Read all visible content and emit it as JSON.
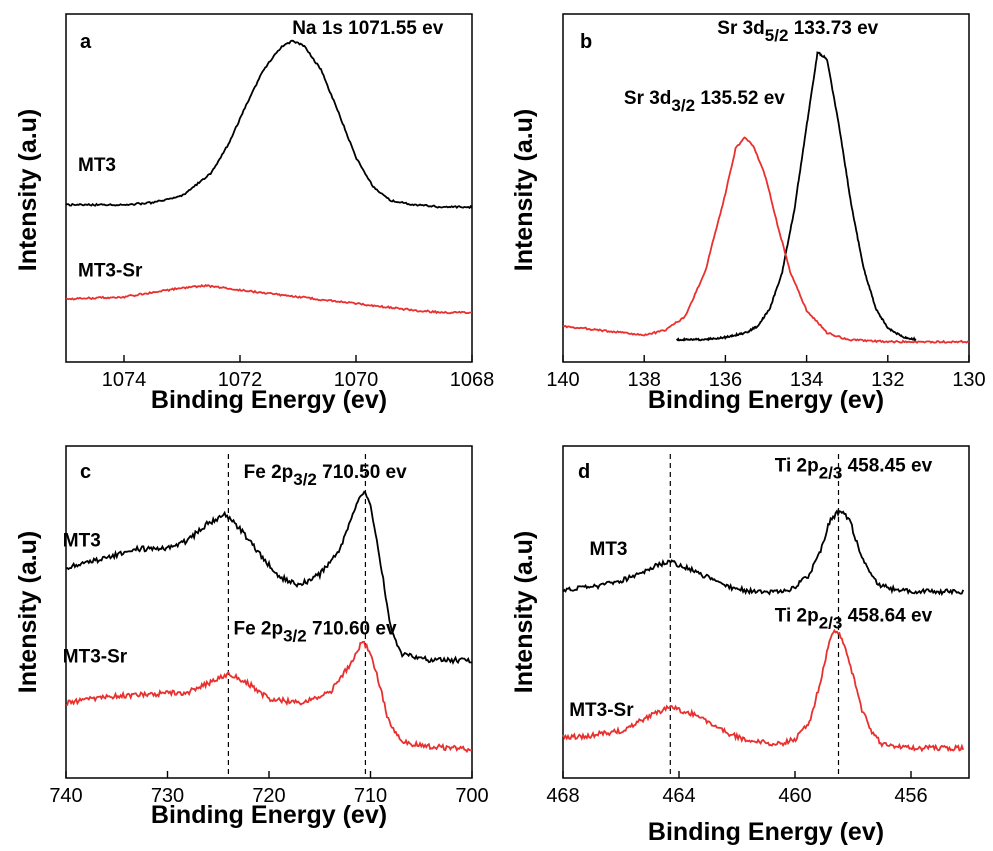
{
  "chart_data": [
    {
      "type": "line",
      "panel_label": "a",
      "xlabel": "Binding Energy (ev)",
      "ylabel": "Intensity (a.u)",
      "xlim": [
        1075,
        1068
      ],
      "xticks": [
        1074,
        1072,
        1070,
        1068
      ],
      "ylim": [
        -0.1,
        1.45
      ],
      "annotations": [
        {
          "text": "Na 1s 1071.55 ev",
          "x": 1071.1,
          "y": 1.36
        }
      ],
      "series": [
        {
          "name": "MT3",
          "color": "#000000",
          "label_at": [
            1075.0,
            0.75
          ],
          "x": [
            1075.0,
            1074.0,
            1073.5,
            1073.0,
            1072.5,
            1072.2,
            1071.9,
            1071.6,
            1071.3,
            1071.1,
            1070.9,
            1070.6,
            1070.3,
            1070.0,
            1069.7,
            1069.4,
            1069.0,
            1068.5,
            1068.0
          ],
          "y": [
            0.6,
            0.6,
            0.61,
            0.64,
            0.74,
            0.87,
            1.04,
            1.2,
            1.3,
            1.33,
            1.31,
            1.2,
            1.01,
            0.81,
            0.68,
            0.62,
            0.6,
            0.59,
            0.59
          ]
        },
        {
          "name": "MT3-Sr",
          "color": "#e8312f",
          "label_at": [
            1075.0,
            0.28
          ],
          "x": [
            1075.0,
            1074.0,
            1073.0,
            1072.6,
            1072.0,
            1071.0,
            1070.0,
            1069.0,
            1068.5,
            1068.0
          ],
          "y": [
            0.18,
            0.19,
            0.23,
            0.24,
            0.22,
            0.19,
            0.16,
            0.13,
            0.12,
            0.12
          ]
        }
      ]
    },
    {
      "type": "line",
      "panel_label": "b",
      "xlabel": "Binding Energy (ev)",
      "ylabel": "Intensity (a.u)",
      "xlim": [
        140,
        130
      ],
      "xticks": [
        140,
        138,
        136,
        134,
        132,
        130
      ],
      "ylim": [
        -0.1,
        1.45
      ],
      "annotations": [
        {
          "text": "Sr 3d",
          "sub": "5/2",
          "tail": " 133.73 ev",
          "x": 136.2,
          "y": 1.36
        },
        {
          "text": "Sr 3d",
          "sub": "3/2",
          "tail": " 135.52 ev",
          "x": 138.5,
          "y": 1.05
        }
      ],
      "series": [
        {
          "name": "MT3",
          "color": "#000000",
          "x": [
            137.2,
            136.5,
            136.0,
            135.5,
            135.2,
            134.9,
            134.6,
            134.3,
            134.0,
            133.73,
            133.5,
            133.2,
            132.9,
            132.6,
            132.3,
            132.0,
            131.6,
            131.3
          ],
          "y": [
            0.0,
            0.0,
            0.01,
            0.03,
            0.06,
            0.14,
            0.3,
            0.58,
            0.95,
            1.28,
            1.25,
            0.95,
            0.6,
            0.32,
            0.14,
            0.05,
            0.01,
            0.0
          ]
        },
        {
          "name": "MT3-Sr",
          "color": "#e8312f",
          "x": [
            140.0,
            139.0,
            138.0,
            137.5,
            137.0,
            136.5,
            136.0,
            135.75,
            135.52,
            135.3,
            135.0,
            134.7,
            134.4,
            134.0,
            133.5,
            133.0,
            132.0,
            131.0,
            130.0
          ],
          "y": [
            0.06,
            0.04,
            0.02,
            0.04,
            0.1,
            0.3,
            0.65,
            0.85,
            0.9,
            0.86,
            0.72,
            0.5,
            0.3,
            0.13,
            0.03,
            0.0,
            -0.01,
            -0.01,
            -0.01
          ]
        }
      ]
    },
    {
      "type": "line",
      "panel_label": "c",
      "xlabel": "Binding Energy (ev)",
      "ylabel": "Intensity (a.u)",
      "xlim": [
        740,
        700
      ],
      "xticks": [
        740,
        730,
        720,
        710,
        700
      ],
      "ylim": [
        -0.1,
        1.45
      ],
      "ref_lines_x": [
        724,
        710.5
      ],
      "annotations": [
        {
          "text": "Fe 2p",
          "sub": "3/2",
          "tail": " 710.50 ev",
          "x": 722.5,
          "y": 1.3
        },
        {
          "text": "Fe 2p",
          "sub": "3/2",
          "tail": " 710.60 ev",
          "x": 723.5,
          "y": 0.57
        }
      ],
      "series": [
        {
          "name": "MT3",
          "color": "#000000",
          "label_at": [
            741.5,
            0.98
          ],
          "x": [
            740,
            736,
            733,
            730,
            728,
            726,
            724.3,
            723,
            721,
            719,
            717,
            715,
            713,
            712,
            711,
            710.5,
            710,
            709,
            708,
            707,
            704,
            700
          ],
          "y": [
            0.88,
            0.93,
            0.97,
            0.97,
            1.01,
            1.09,
            1.13,
            1.07,
            0.95,
            0.84,
            0.8,
            0.85,
            0.97,
            1.1,
            1.22,
            1.24,
            1.17,
            0.9,
            0.6,
            0.48,
            0.45,
            0.45
          ]
        },
        {
          "name": "MT3-Sr",
          "color": "#e8312f",
          "label_at": [
            741.5,
            0.44
          ],
          "x": [
            740,
            736,
            732,
            728,
            726,
            724,
            722,
            720,
            717,
            714,
            712,
            711,
            710.6,
            710,
            709,
            708.3,
            707,
            705,
            702,
            700
          ],
          "y": [
            0.25,
            0.28,
            0.29,
            0.3,
            0.34,
            0.39,
            0.34,
            0.27,
            0.25,
            0.3,
            0.43,
            0.52,
            0.53,
            0.48,
            0.32,
            0.18,
            0.07,
            0.05,
            0.04,
            0.03
          ]
        }
      ]
    },
    {
      "type": "line",
      "panel_label": "d",
      "xlabel": "Binding Energy (ev)",
      "ylabel": "Intensity (a.u)",
      "xlim": [
        468,
        454
      ],
      "xticks": [
        468,
        464,
        460,
        456
      ],
      "ylim": [
        -0.1,
        1.45
      ],
      "ref_lines_x": [
        464.3,
        458.5
      ],
      "annotations": [
        {
          "text": "Ti 2p",
          "sub": "2/3",
          "tail": " 458.45 ev",
          "x": 460.7,
          "y": 1.33
        },
        {
          "text": "Ti 2p",
          "sub": "2/3",
          "tail": " 458.64 ev",
          "x": 460.7,
          "y": 0.63
        }
      ],
      "series": [
        {
          "name": "MT3",
          "color": "#000000",
          "label_at": [
            467.5,
            0.94
          ],
          "x": [
            468,
            467,
            466,
            465,
            464.3,
            463.5,
            462.5,
            461.5,
            460.5,
            460,
            459.5,
            459.1,
            458.8,
            458.45,
            458.1,
            457.8,
            457.5,
            457.1,
            456.6,
            456,
            454.2
          ],
          "y": [
            0.78,
            0.79,
            0.82,
            0.88,
            0.91,
            0.87,
            0.8,
            0.77,
            0.77,
            0.79,
            0.85,
            0.97,
            1.1,
            1.15,
            1.1,
            0.97,
            0.87,
            0.8,
            0.78,
            0.77,
            0.77
          ]
        },
        {
          "name": "MT3-Sr",
          "color": "#e8312f",
          "label_at": [
            468.2,
            0.19
          ],
          "x": [
            468,
            467,
            466,
            465,
            464.3,
            463.5,
            462.5,
            461.5,
            460.5,
            460,
            459.5,
            459.1,
            458.8,
            458.64,
            458.3,
            458,
            457.7,
            457.3,
            457,
            456,
            454.2
          ],
          "y": [
            0.09,
            0.1,
            0.12,
            0.19,
            0.23,
            0.2,
            0.12,
            0.07,
            0.06,
            0.08,
            0.16,
            0.36,
            0.55,
            0.6,
            0.53,
            0.38,
            0.22,
            0.1,
            0.06,
            0.04,
            0.04
          ]
        }
      ]
    }
  ]
}
